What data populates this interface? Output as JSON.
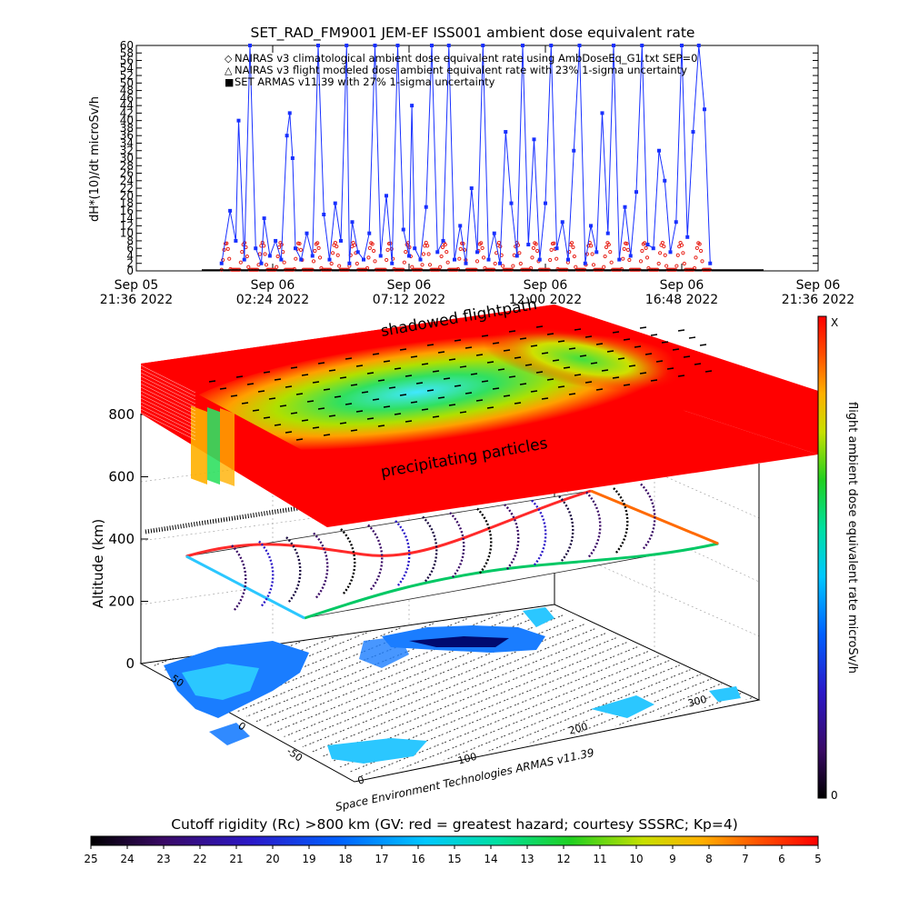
{
  "colors": {
    "series_nairas_clim": "#e8231a",
    "series_nairas_flight": "#000000",
    "series_armas": "#1830ff",
    "hazard_high": "#ff0000",
    "hazard_low": "#000000"
  },
  "chart_data": [
    {
      "type": "line",
      "title": "SET_RAD_FM9001  JEM-EF ISS001 ambient dose equivalent rate",
      "ylabel": "dH*(10)/dt microSv/h",
      "ylim": [
        0,
        60
      ],
      "y_ticks": [
        "0",
        "2",
        "4",
        "6",
        "8",
        "10",
        "12",
        "14",
        "16",
        "18",
        "20",
        "22",
        "24",
        "26",
        "28",
        "30",
        "32",
        "34",
        "36",
        "38",
        "40",
        "42",
        "44",
        "46",
        "48",
        "50",
        "52",
        "54",
        "56",
        "58",
        "60"
      ],
      "x_tick_labels": [
        {
          "line1": "Sep 05",
          "line2": "21:36 2022"
        },
        {
          "line1": "Sep 06",
          "line2": "02:24 2022"
        },
        {
          "line1": "Sep 06",
          "line2": "07:12 2022"
        },
        {
          "line1": "Sep 06",
          "line2": "12:00 2022"
        },
        {
          "line1": "Sep 06",
          "line2": "16:48 2022"
        },
        {
          "line1": "Sep 06",
          "line2": "21:36 2022"
        }
      ],
      "x_hours": [
        0,
        4.8,
        9.6,
        14.4,
        19.2,
        24.0
      ],
      "legend": [
        {
          "symbol": "◇",
          "text": "NAIRAS v3 climatological ambient dose equivalent rate using AmbDoseEq_G1.txt SEP=0"
        },
        {
          "symbol": "△",
          "text": "NAIRAS v3 flight modeled dose ambient equivalent rate with 23% 1-sigma uncertainty"
        },
        {
          "symbol": "■",
          "text": "SET ARMAS v11.39 with 27% 1-sigma uncertainty"
        }
      ],
      "series": [
        {
          "name": "NAIRAS v3 climatological ambient dose equivalent rate using AmbDoseEq_G1.txt SEP=0",
          "start_hour": 3.0,
          "end_hour": 20.2,
          "period_hours": 0.64,
          "min": 0.3,
          "max": 7.5
        },
        {
          "name": "SET ARMAS v11.39 with 27% 1-sigma uncertainty",
          "x_hours": [
            3.0,
            3.3,
            3.5,
            3.6,
            3.8,
            4.0,
            4.2,
            4.4,
            4.5,
            4.7,
            4.9,
            5.1,
            5.3,
            5.4,
            5.5,
            5.6,
            5.8,
            6.0,
            6.2,
            6.4,
            6.6,
            6.8,
            7.0,
            7.2,
            7.4,
            7.5,
            7.6,
            7.8,
            8.0,
            8.2,
            8.4,
            8.6,
            8.8,
            9.0,
            9.2,
            9.4,
            9.6,
            9.7,
            9.8,
            10.0,
            10.2,
            10.4,
            10.6,
            10.8,
            11.0,
            11.2,
            11.4,
            11.6,
            11.8,
            12.0,
            12.2,
            12.4,
            12.6,
            12.8,
            13.0,
            13.2,
            13.4,
            13.6,
            13.8,
            14.0,
            14.2,
            14.4,
            14.6,
            14.8,
            15.0,
            15.2,
            15.4,
            15.6,
            15.8,
            16.0,
            16.2,
            16.4,
            16.6,
            16.8,
            17.0,
            17.2,
            17.4,
            17.6,
            17.8,
            18.0,
            18.2,
            18.4,
            18.6,
            18.8,
            19.0,
            19.2,
            19.4,
            19.6,
            19.8,
            20.0,
            20.2
          ],
          "values": [
            2,
            16,
            8,
            40,
            3,
            60,
            6,
            2,
            14,
            4,
            8,
            3,
            36,
            42,
            30,
            6,
            3,
            10,
            4,
            60,
            15,
            3,
            18,
            8,
            60,
            2,
            13,
            5,
            3,
            10,
            60,
            4,
            20,
            2,
            60,
            11,
            4,
            44,
            6,
            3,
            17,
            60,
            5,
            8,
            60,
            3,
            12,
            2,
            22,
            5,
            60,
            3,
            10,
            2,
            37,
            18,
            4,
            60,
            7,
            35,
            3,
            18,
            60,
            6,
            13,
            3,
            32,
            60,
            2,
            12,
            5,
            42,
            10,
            60,
            3,
            17,
            4,
            21,
            60,
            7,
            6,
            32,
            24,
            5,
            13,
            60,
            9,
            37,
            60,
            43,
            2
          ]
        }
      ]
    },
    {
      "type": "heatmap",
      "zlabel": "Altitude (km)",
      "z_ticks": [
        "0",
        "200",
        "400",
        "600",
        "800"
      ],
      "lat_ticks": [
        "50",
        "0",
        "-50"
      ],
      "lon_ticks": [
        "0",
        "100",
        "200",
        "300"
      ],
      "annotations": [
        "shadowed flightpath",
        "precipitating particles"
      ],
      "credit": "Space Environment Technologies ARMAS v11.39",
      "right_colorbar": {
        "label": "flight ambient dose equivalent rate microSv/h",
        "top": "X",
        "bottom": "0"
      }
    },
    {
      "type": "heatmap",
      "title": "Cutoff rigidity (Rc) >800 km (GV: red = greatest hazard; courtesy SSSRC; Kp=4)",
      "ticks": [
        "25",
        "24",
        "23",
        "22",
        "21",
        "20",
        "19",
        "18",
        "17",
        "16",
        "15",
        "14",
        "13",
        "12",
        "11",
        "10",
        "9",
        "8",
        "7",
        "6",
        "5"
      ]
    }
  ]
}
